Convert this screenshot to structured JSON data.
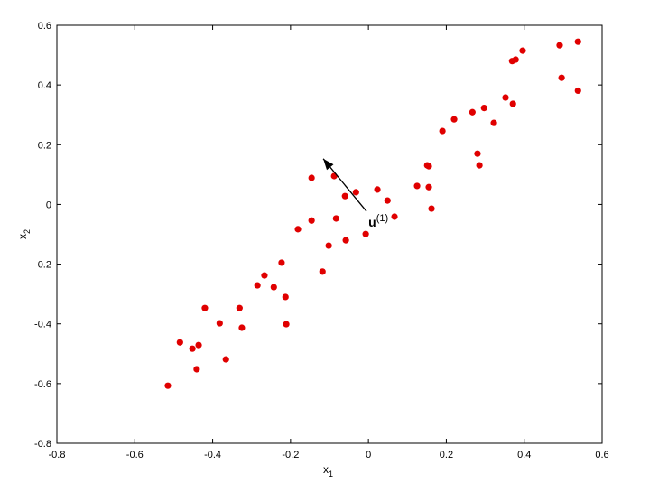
{
  "chart_data": {
    "type": "scatter",
    "title": "",
    "xlabel": "x",
    "xlabel_sub": "1",
    "ylabel": "x",
    "ylabel_sub": "2",
    "xlim": [
      -0.8,
      0.6
    ],
    "ylim": [
      -0.8,
      0.6
    ],
    "xticks": [
      "-0.8",
      "-0.6",
      "-0.4",
      "-0.2",
      "0",
      "0.2",
      "0.4",
      "0.6"
    ],
    "yticks": [
      "-0.8",
      "-0.6",
      "-0.4",
      "-0.2",
      "0",
      "0.2",
      "0.4",
      "0.6"
    ],
    "grid": false,
    "marker_color": "#e00000",
    "points": [
      [
        -0.515,
        -0.607
      ],
      [
        -0.484,
        -0.462
      ],
      [
        -0.452,
        -0.483
      ],
      [
        -0.436,
        -0.471
      ],
      [
        -0.441,
        -0.552
      ],
      [
        -0.42,
        -0.347
      ],
      [
        -0.382,
        -0.398
      ],
      [
        -0.366,
        -0.519
      ],
      [
        -0.331,
        -0.347
      ],
      [
        -0.325,
        -0.413
      ],
      [
        -0.285,
        -0.271
      ],
      [
        -0.267,
        -0.238
      ],
      [
        -0.243,
        -0.277
      ],
      [
        -0.223,
        -0.195
      ],
      [
        -0.213,
        -0.31
      ],
      [
        -0.211,
        -0.401
      ],
      [
        -0.181,
        -0.083
      ],
      [
        -0.146,
        0.089
      ],
      [
        -0.146,
        -0.054
      ],
      [
        -0.118,
        -0.225
      ],
      [
        -0.102,
        -0.138
      ],
      [
        -0.088,
        0.095
      ],
      [
        -0.083,
        -0.047
      ],
      [
        -0.06,
        0.028
      ],
      [
        -0.058,
        -0.12
      ],
      [
        -0.032,
        0.041
      ],
      [
        -0.007,
        -0.099
      ],
      [
        0.023,
        0.05
      ],
      [
        0.049,
        0.013
      ],
      [
        0.067,
        -0.041
      ],
      [
        0.125,
        0.062
      ],
      [
        0.151,
        0.131
      ],
      [
        0.155,
        0.128
      ],
      [
        0.155,
        0.058
      ],
      [
        0.162,
        -0.014
      ],
      [
        0.19,
        0.246
      ],
      [
        0.22,
        0.285
      ],
      [
        0.267,
        0.309
      ],
      [
        0.28,
        0.17
      ],
      [
        0.285,
        0.131
      ],
      [
        0.297,
        0.323
      ],
      [
        0.322,
        0.273
      ],
      [
        0.352,
        0.358
      ],
      [
        0.371,
        0.337
      ],
      [
        0.369,
        0.48
      ],
      [
        0.378,
        0.485
      ],
      [
        0.396,
        0.515
      ],
      [
        0.491,
        0.533
      ],
      [
        0.496,
        0.424
      ],
      [
        0.538,
        0.545
      ],
      [
        0.538,
        0.381
      ]
    ],
    "annotations": [
      {
        "type": "arrow",
        "from": [
          -0.005,
          -0.023
        ],
        "to": [
          -0.116,
          0.153
        ],
        "label": "u",
        "label_sup": "(1)",
        "label_at": [
          0.0,
          -0.075
        ]
      }
    ]
  }
}
